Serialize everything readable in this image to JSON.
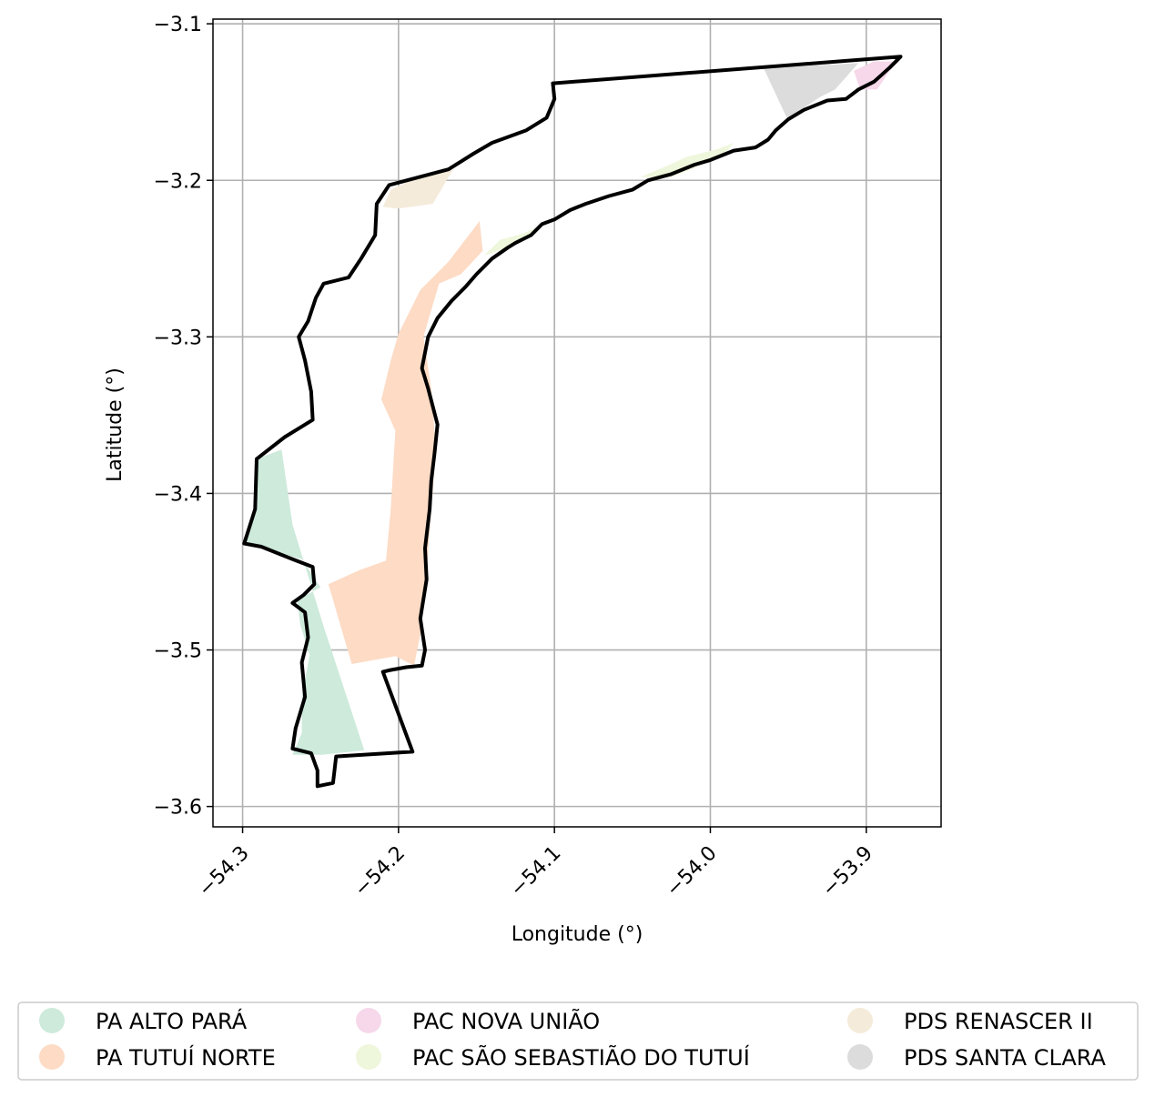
{
  "axes": {
    "xlabel": "Longitude (°)",
    "ylabel": "Latitude (°)",
    "xlim": [
      -54.319,
      -53.852
    ],
    "ylim": [
      -3.613,
      -3.097
    ],
    "grid": true,
    "xticks": [
      {
        "value": -54.3,
        "label": "−54.3"
      },
      {
        "value": -54.2,
        "label": "−54.2"
      },
      {
        "value": -54.1,
        "label": "−54.1"
      },
      {
        "value": -54.0,
        "label": "−54.0"
      },
      {
        "value": -53.9,
        "label": "−53.9"
      }
    ],
    "yticks": [
      {
        "value": -3.1,
        "label": "−3.1"
      },
      {
        "value": -3.2,
        "label": "−3.2"
      },
      {
        "value": -3.3,
        "label": "−3.3"
      },
      {
        "value": -3.4,
        "label": "−3.4"
      },
      {
        "value": -3.5,
        "label": "−3.5"
      },
      {
        "value": -3.6,
        "label": "−3.6"
      }
    ]
  },
  "legend": {
    "placement": "bottom",
    "items": [
      {
        "label": "PA ALTO PARÁ",
        "color": "#cdeadb"
      },
      {
        "label": "PA TUTUÍ NORTE",
        "color": "#fddbc5"
      },
      {
        "label": "PAC NOVA UNIÃO",
        "color": "#f6d8ea"
      },
      {
        "label": "PAC SÃO SEBASTIÃO DO TUTUÍ",
        "color": "#eef7dc"
      },
      {
        "label": "PDS RENASCER II",
        "color": "#f5ebda"
      },
      {
        "label": "PDS SANTA CLARA",
        "color": "#dcdcdc"
      }
    ]
  },
  "regions": [
    {
      "name": "PA ALTO PARÁ",
      "color": "#cdeadb",
      "coords": [
        [
          -54.275,
          -3.372
        ],
        [
          -54.291,
          -3.378
        ],
        [
          -54.292,
          -3.41
        ],
        [
          -54.299,
          -3.432
        ],
        [
          -54.285,
          -3.436
        ],
        [
          -54.262,
          -3.442
        ],
        [
          -54.25,
          -3.46
        ],
        [
          -54.265,
          -3.468
        ],
        [
          -54.263,
          -3.484
        ],
        [
          -54.257,
          -3.503
        ],
        [
          -54.262,
          -3.53
        ],
        [
          -54.262,
          -3.553
        ],
        [
          -54.268,
          -3.567
        ],
        [
          -54.249,
          -3.567
        ],
        [
          -54.222,
          -3.564
        ],
        [
          -54.248,
          -3.485
        ],
        [
          -54.268,
          -3.42
        ]
      ]
    },
    {
      "name": "PA TUTUÍ NORTE",
      "color": "#fddbc5",
      "coords": [
        [
          -54.245,
          -3.458
        ],
        [
          -54.225,
          -3.449
        ],
        [
          -54.208,
          -3.443
        ],
        [
          -54.205,
          -3.41
        ],
        [
          -54.202,
          -3.36
        ],
        [
          -54.211,
          -3.34
        ],
        [
          -54.205,
          -3.315
        ],
        [
          -54.2,
          -3.298
        ],
        [
          -54.186,
          -3.27
        ],
        [
          -54.168,
          -3.252
        ],
        [
          -54.148,
          -3.226
        ],
        [
          -54.146,
          -3.245
        ],
        [
          -54.16,
          -3.26
        ],
        [
          -54.174,
          -3.266
        ],
        [
          -54.184,
          -3.3
        ],
        [
          -54.179,
          -3.333
        ],
        [
          -54.176,
          -3.372
        ],
        [
          -54.179,
          -3.41
        ],
        [
          -54.182,
          -3.45
        ],
        [
          -54.186,
          -3.49
        ],
        [
          -54.19,
          -3.51
        ],
        [
          -54.202,
          -3.504
        ],
        [
          -54.23,
          -3.509
        ]
      ]
    },
    {
      "name": "PAC NOVA UNIÃO",
      "color": "#f6d8ea",
      "coords": [
        [
          -53.908,
          -3.13
        ],
        [
          -53.895,
          -3.124
        ],
        [
          -53.879,
          -3.124
        ],
        [
          -53.885,
          -3.13
        ],
        [
          -53.893,
          -3.142
        ],
        [
          -53.904,
          -3.142
        ]
      ]
    },
    {
      "name": "PAC SÃO SEBASTIÃO DO TUTUÍ",
      "color": "#eef7dc",
      "coords": [
        [
          -54.145,
          -3.248
        ],
        [
          -54.135,
          -3.238
        ],
        [
          -54.12,
          -3.234
        ],
        [
          -54.107,
          -3.228
        ],
        [
          -54.115,
          -3.236
        ],
        [
          -54.13,
          -3.243
        ]
      ]
    },
    {
      "name": "PAC SÃO SEBASTIÃO DO TUTUÍ",
      "color": "#eef7dc",
      "coords": [
        [
          -54.045,
          -3.198
        ],
        [
          -54.033,
          -3.193
        ],
        [
          -54.015,
          -3.185
        ],
        [
          -53.995,
          -3.18
        ],
        [
          -53.985,
          -3.176
        ],
        [
          -53.99,
          -3.182
        ],
        [
          -54.005,
          -3.19
        ],
        [
          -54.025,
          -3.198
        ]
      ]
    },
    {
      "name": "PDS RENASCER II",
      "color": "#f5ebda",
      "coords": [
        [
          -54.205,
          -3.206
        ],
        [
          -54.184,
          -3.196
        ],
        [
          -54.165,
          -3.193
        ],
        [
          -54.178,
          -3.215
        ],
        [
          -54.2,
          -3.218
        ],
        [
          -54.21,
          -3.217
        ]
      ]
    },
    {
      "name": "PDS SANTA CLARA",
      "color": "#dcdcdc",
      "coords": [
        [
          -53.966,
          -3.128
        ],
        [
          -53.92,
          -3.126
        ],
        [
          -53.905,
          -3.125
        ],
        [
          -53.92,
          -3.142
        ],
        [
          -53.93,
          -3.147
        ],
        [
          -53.945,
          -3.157
        ],
        [
          -53.951,
          -3.16
        ]
      ]
    }
  ],
  "boundary": [
    [
      -54.101,
      -3.138
    ],
    [
      -53.878,
      -3.121
    ],
    [
      -53.885,
      -3.128
    ],
    [
      -53.895,
      -3.137
    ],
    [
      -53.905,
      -3.142
    ],
    [
      -53.913,
      -3.148
    ],
    [
      -53.925,
      -3.149
    ],
    [
      -53.94,
      -3.155
    ],
    [
      -53.95,
      -3.161
    ],
    [
      -53.958,
      -3.168
    ],
    [
      -53.963,
      -3.174
    ],
    [
      -53.971,
      -3.179
    ],
    [
      -53.985,
      -3.181
    ],
    [
      -54.0,
      -3.187
    ],
    [
      -54.01,
      -3.19
    ],
    [
      -54.025,
      -3.196
    ],
    [
      -54.04,
      -3.2
    ],
    [
      -54.05,
      -3.206
    ],
    [
      -54.065,
      -3.21
    ],
    [
      -54.08,
      -3.215
    ],
    [
      -54.09,
      -3.219
    ],
    [
      -54.1,
      -3.225
    ],
    [
      -54.108,
      -3.228
    ],
    [
      -54.115,
      -3.235
    ],
    [
      -54.125,
      -3.24
    ],
    [
      -54.13,
      -3.243
    ],
    [
      -54.14,
      -3.25
    ],
    [
      -54.15,
      -3.26
    ],
    [
      -54.157,
      -3.268
    ],
    [
      -54.166,
      -3.277
    ],
    [
      -54.175,
      -3.288
    ],
    [
      -54.181,
      -3.3
    ],
    [
      -54.185,
      -3.32
    ],
    [
      -54.181,
      -3.333
    ],
    [
      -54.175,
      -3.356
    ],
    [
      -54.177,
      -3.375
    ],
    [
      -54.179,
      -3.392
    ],
    [
      -54.18,
      -3.41
    ],
    [
      -54.183,
      -3.435
    ],
    [
      -54.182,
      -3.455
    ],
    [
      -54.186,
      -3.48
    ],
    [
      -54.183,
      -3.5
    ],
    [
      -54.185,
      -3.51
    ],
    [
      -54.195,
      -3.511
    ],
    [
      -54.206,
      -3.513
    ],
    [
      -54.21,
      -3.514
    ],
    [
      -54.191,
      -3.565
    ],
    [
      -54.24,
      -3.568
    ],
    [
      -54.242,
      -3.585
    ],
    [
      -54.252,
      -3.587
    ],
    [
      -54.252,
      -3.577
    ],
    [
      -54.256,
      -3.566
    ],
    [
      -54.268,
      -3.563
    ],
    [
      -54.266,
      -3.55
    ],
    [
      -54.26,
      -3.53
    ],
    [
      -54.262,
      -3.508
    ],
    [
      -54.258,
      -3.492
    ],
    [
      -54.26,
      -3.476
    ],
    [
      -54.268,
      -3.47
    ],
    [
      -54.261,
      -3.465
    ],
    [
      -54.254,
      -3.458
    ],
    [
      -54.255,
      -3.447
    ],
    [
      -54.268,
      -3.442
    ],
    [
      -54.288,
      -3.434
    ],
    [
      -54.299,
      -3.432
    ],
    [
      -54.292,
      -3.41
    ],
    [
      -54.291,
      -3.378
    ],
    [
      -54.273,
      -3.364
    ],
    [
      -54.255,
      -3.353
    ],
    [
      -54.256,
      -3.335
    ],
    [
      -54.26,
      -3.315
    ],
    [
      -54.264,
      -3.3
    ],
    [
      -54.258,
      -3.29
    ],
    [
      -54.253,
      -3.275
    ],
    [
      -54.248,
      -3.266
    ],
    [
      -54.232,
      -3.262
    ],
    [
      -54.224,
      -3.25
    ],
    [
      -54.215,
      -3.235
    ],
    [
      -54.214,
      -3.215
    ],
    [
      -54.206,
      -3.203
    ],
    [
      -54.187,
      -3.198
    ],
    [
      -54.168,
      -3.193
    ],
    [
      -54.152,
      -3.183
    ],
    [
      -54.14,
      -3.176
    ],
    [
      -54.118,
      -3.168
    ],
    [
      -54.105,
      -3.16
    ],
    [
      -54.1,
      -3.148
    ]
  ]
}
